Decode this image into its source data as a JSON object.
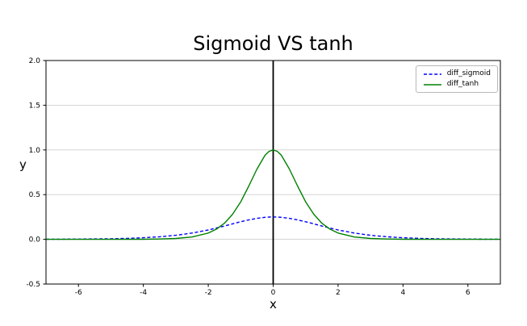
{
  "chart_data": {
    "type": "line",
    "title": "Sigmoid VS tanh",
    "xlabel": "x",
    "ylabel": "y",
    "xlim": [
      -7,
      7
    ],
    "ylim": [
      -0.5,
      2.0
    ],
    "grid": "horizontal-only",
    "legend_position": "upper right",
    "axvline": {
      "x": 0,
      "color": "#000000"
    },
    "x_ticks": {
      "values": [
        -6,
        -4,
        -2,
        0,
        2,
        4,
        6
      ],
      "labels": [
        "-6",
        "-4",
        "-2",
        "0",
        "2",
        "4",
        "6"
      ]
    },
    "y_ticks": {
      "values": [
        -0.5,
        0.0,
        0.5,
        1.0,
        1.5,
        2.0
      ],
      "labels": [
        "-0.5",
        "0.0",
        "0.5",
        "1.0",
        "1.5",
        "2.0"
      ]
    },
    "x": [
      -7,
      -6.5,
      -6,
      -5.5,
      -5,
      -4.5,
      -4,
      -3.5,
      -3,
      -2.5,
      -2,
      -1.75,
      -1.5,
      -1.25,
      -1,
      -0.75,
      -0.5,
      -0.25,
      -0.125,
      0,
      0.125,
      0.25,
      0.5,
      0.75,
      1,
      1.25,
      1.5,
      1.75,
      2,
      2.5,
      3,
      3.5,
      4,
      4.5,
      5,
      5.5,
      6,
      6.5,
      7
    ],
    "series": [
      {
        "name": "diff_sigmoid",
        "color": "#0000ff",
        "line_style": "dashed",
        "values": [
          0.0009,
          0.0015,
          0.0025,
          0.0041,
          0.0066,
          0.0109,
          0.0177,
          0.0285,
          0.0452,
          0.0701,
          0.105,
          0.1261,
          0.1491,
          0.1731,
          0.1966,
          0.2179,
          0.235,
          0.2461,
          0.249,
          0.25,
          0.249,
          0.2461,
          0.235,
          0.2179,
          0.1966,
          0.1731,
          0.1491,
          0.1261,
          0.105,
          0.0701,
          0.0452,
          0.0285,
          0.0177,
          0.0109,
          0.0066,
          0.0041,
          0.0025,
          0.0015,
          0.0009
        ]
      },
      {
        "name": "diff_tanh",
        "color": "#008000",
        "line_style": "solid",
        "values": [
          0.0,
          0.0,
          0.0,
          0.0001,
          0.0002,
          0.0005,
          0.0013,
          0.0036,
          0.0099,
          0.0266,
          0.0707,
          0.1138,
          0.1807,
          0.2804,
          0.42,
          0.5966,
          0.7865,
          0.94,
          0.9845,
          1.0,
          0.9845,
          0.94,
          0.7865,
          0.5966,
          0.42,
          0.2804,
          0.1807,
          0.1138,
          0.0707,
          0.0266,
          0.0099,
          0.0036,
          0.0013,
          0.0005,
          0.0002,
          0.0001,
          0.0,
          0.0,
          0.0
        ]
      }
    ],
    "style": {
      "grid_color": "#cfcfcf",
      "spine_color": "#000000",
      "text_color": "#000000",
      "background": "#ffffff",
      "tick_label_size": 9
    }
  }
}
